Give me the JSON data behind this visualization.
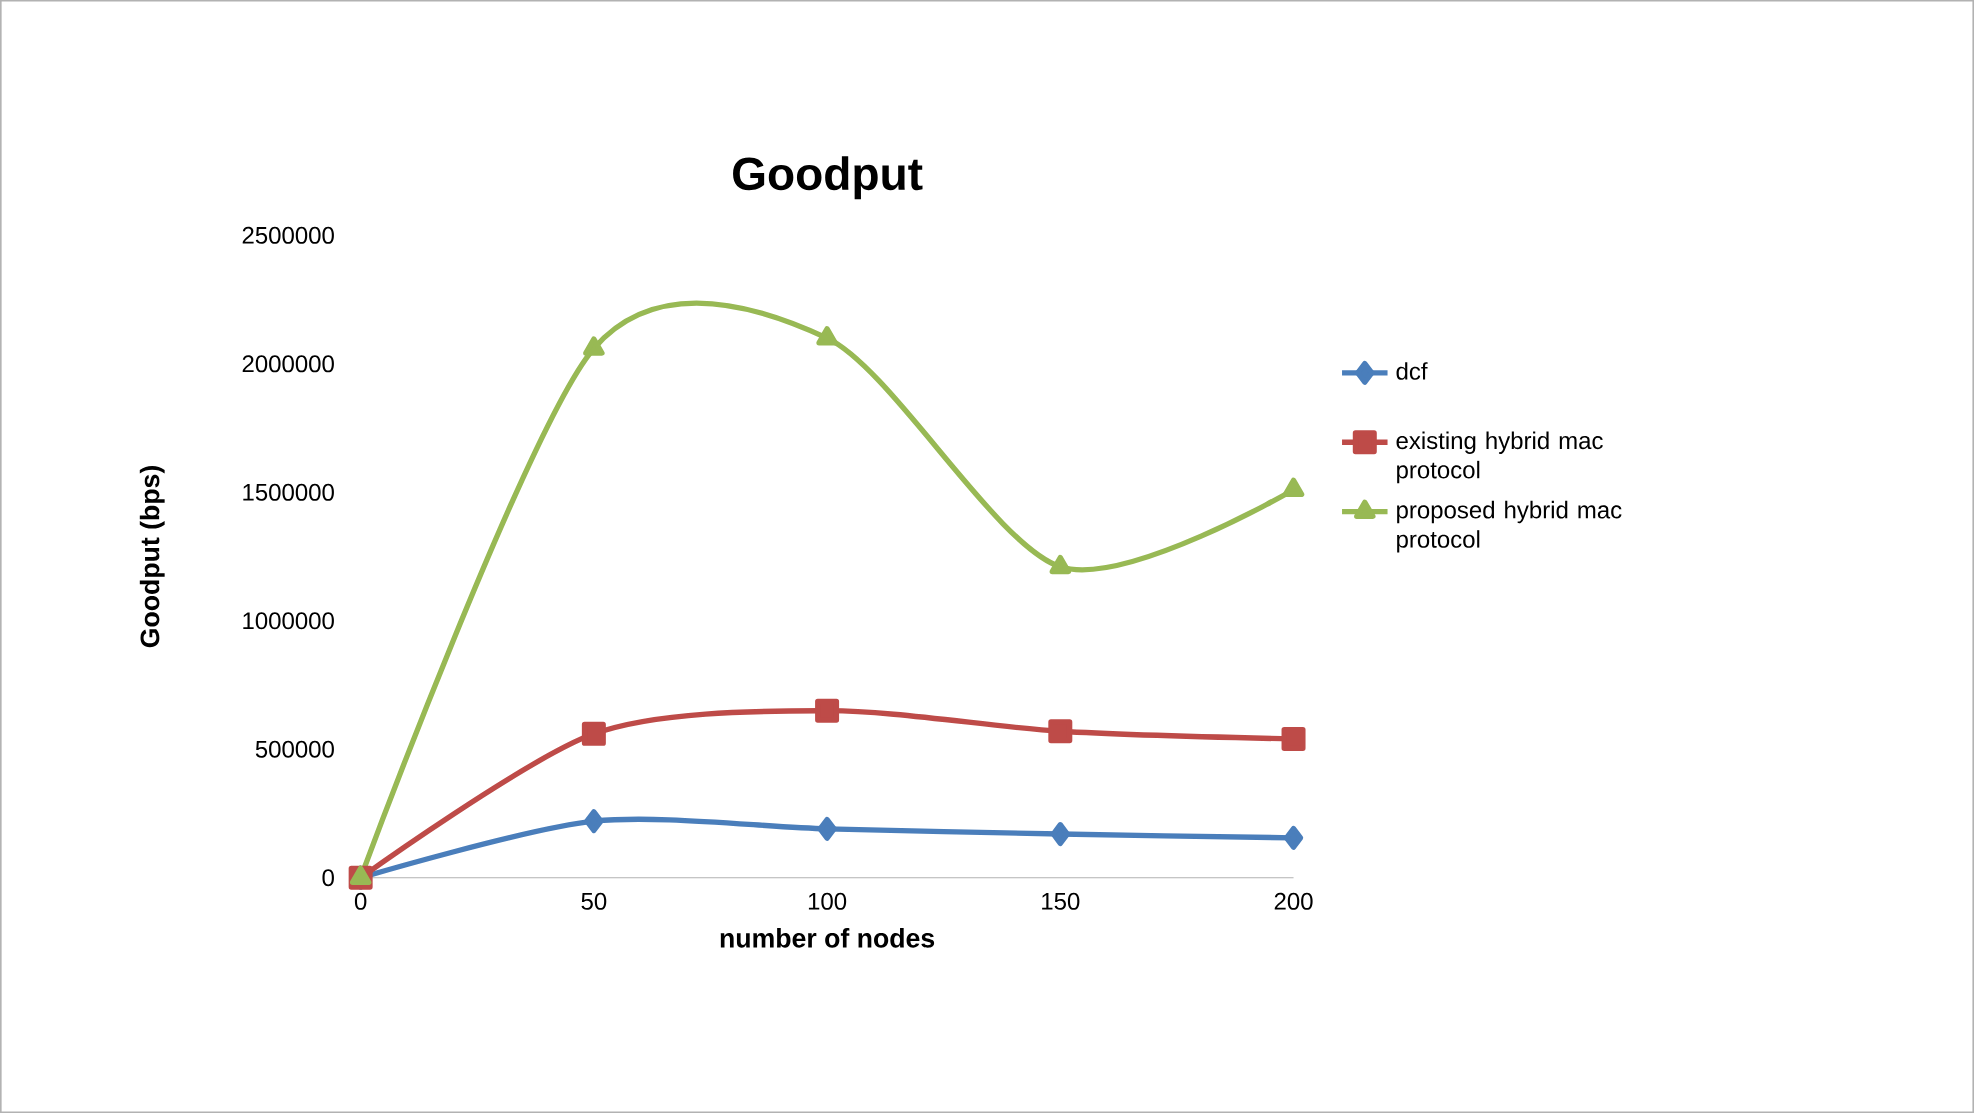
{
  "chart_data": {
    "type": "line",
    "title": "Goodput",
    "xlabel": "number of nodes",
    "ylabel": "Goodput (bps)",
    "categories": [
      "0",
      "50",
      "100",
      "150",
      "200"
    ],
    "series": [
      {
        "name": "dcf",
        "color": "#4a7ebb",
        "marker": "diamond",
        "values": [
          0,
          220000,
          190000,
          170000,
          155000
        ]
      },
      {
        "name": "existing hybrid mac protocol",
        "color": "#be4b48",
        "marker": "square",
        "values": [
          0,
          560000,
          650000,
          570000,
          540000
        ]
      },
      {
        "name": "proposed hybrid mac protocol",
        "color": "#98b954",
        "marker": "triangle",
        "values": [
          0,
          2060000,
          2100000,
          1210000,
          1510000
        ]
      }
    ],
    "ylim": [
      0,
      2500000
    ],
    "yticks": [
      0,
      500000,
      1000000,
      1500000,
      2000000,
      2500000
    ],
    "grid": false,
    "legend": "right"
  }
}
